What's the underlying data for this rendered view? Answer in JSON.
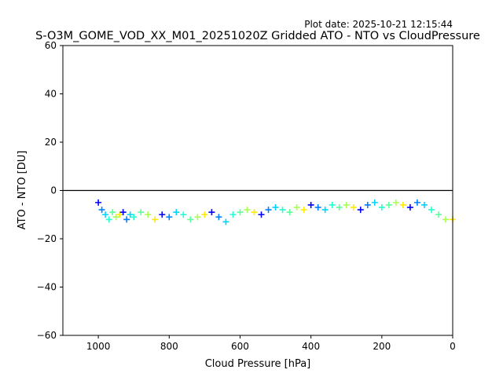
{
  "plot_date": "Plot date: 2025-10-21 12:15:44",
  "chart_data": {
    "type": "scatter",
    "title": "S-O3M_GOME_VOD_XX_M01_20251020Z Gridded ATO - NTO vs CloudPressure",
    "xlabel": "Cloud Pressure [hPa]",
    "ylabel": "ATO - NTO [DU]",
    "xlim": [
      1100,
      0
    ],
    "ylim": [
      -60,
      60
    ],
    "xaxis_inverted": true,
    "xticks": [
      1000,
      800,
      600,
      400,
      200,
      0
    ],
    "yticks": [
      -60,
      -40,
      -20,
      0,
      20,
      40,
      60
    ],
    "reference_line_y": 0,
    "marker": "+",
    "colors": [
      "#0000ff",
      "#0080ff",
      "#00d4ff",
      "#22ffd0",
      "#5cff9c",
      "#a8ff52",
      "#ffea00"
    ],
    "series": [
      {
        "x": [
          1000,
          990,
          980,
          970,
          960,
          950,
          940,
          930,
          920,
          910,
          900,
          880,
          860,
          840,
          820,
          800,
          780,
          760,
          740,
          720,
          700,
          680,
          660,
          640,
          620,
          600,
          580,
          560,
          540,
          520,
          500,
          480,
          460,
          440,
          420,
          400,
          380,
          360,
          340,
          320,
          300,
          280,
          260,
          240,
          220,
          200,
          180,
          160,
          140,
          120,
          100,
          80,
          60,
          40,
          20,
          0
        ],
        "y": [
          -5,
          -8,
          -10,
          -12,
          -9,
          -11,
          -10,
          -9,
          -12,
          -10,
          -11,
          -9,
          -10,
          -12,
          -10,
          -11,
          -9,
          -10,
          -12,
          -11,
          -10,
          -9,
          -11,
          -13,
          -10,
          -9,
          -8,
          -9,
          -10,
          -8,
          -7,
          -8,
          -9,
          -7,
          -8,
          -6,
          -7,
          -8,
          -6,
          -7,
          -6,
          -7,
          -8,
          -6,
          -5,
          -7,
          -6,
          -5,
          -6,
          -7,
          -5,
          -6,
          -8,
          -10,
          -12,
          -12
        ]
      }
    ]
  }
}
